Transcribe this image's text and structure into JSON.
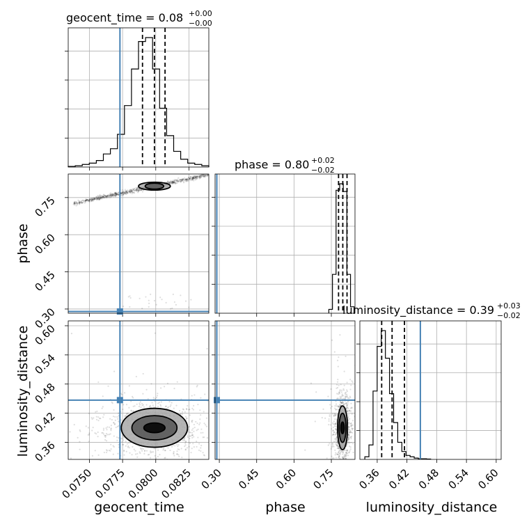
{
  "chart_data": {
    "type": "corner",
    "grid": true,
    "truth_color": "#4682b4",
    "params": [
      {
        "name": "geocent_time",
        "title_prefix": "geocent_time = 0.08",
        "err_plus": "+0.00",
        "err_minus": "−0.00",
        "range": [
          0.0734,
          0.084
        ],
        "ticks": [
          0.075,
          0.0775,
          0.08,
          0.0825
        ],
        "tick_labels": [
          "0.0750",
          "0.0775",
          "0.0800",
          "0.0825"
        ],
        "truth": 0.0773,
        "quantiles": [
          0.079,
          0.0799,
          0.0807
        ],
        "hist_start": 0.0734,
        "hist_width": 0.00053,
        "hist": [
          0.5,
          1,
          2,
          3,
          5,
          10,
          14,
          25,
          47,
          75,
          96,
          99,
          75,
          45,
          24,
          12,
          6,
          3,
          2,
          1
        ]
      },
      {
        "name": "phase",
        "title_prefix": "phase = 0.80",
        "err_plus": "+0.02",
        "err_minus": "−0.02",
        "range": [
          0.283,
          0.845
        ],
        "ticks": [
          0.3,
          0.45,
          0.6,
          0.75
        ],
        "tick_labels": [
          "0.30",
          "0.45",
          "0.60",
          "0.75"
        ],
        "truth": 0.29,
        "quantiles": [
          0.779,
          0.796,
          0.813
        ],
        "hist_start": 0.74,
        "hist_width": 0.0145,
        "hist": [
          3,
          30,
          95,
          100,
          94,
          30,
          5
        ]
      },
      {
        "name": "luminosity_distance",
        "title_prefix": "luminosity_distance = 0.39",
        "err_plus": "+0.03",
        "err_minus": "−0.02",
        "range": [
          0.325,
          0.61
        ],
        "ticks": [
          0.36,
          0.42,
          0.48,
          0.54,
          0.6
        ],
        "tick_labels": [
          "0.36",
          "0.42",
          "0.48",
          "0.54",
          "0.60"
        ],
        "truth": 0.447,
        "quantiles": [
          0.369,
          0.39,
          0.415
        ],
        "hist_start": 0.335,
        "hist_width": 0.0083,
        "hist": [
          2,
          11,
          52,
          86,
          98,
          77,
          50,
          28,
          13,
          6,
          3,
          2,
          1,
          0.5,
          0.5,
          0.3
        ]
      }
    ],
    "scatter_2d": [
      {
        "x": "geocent_time",
        "y": "phase",
        "contour_center": [
          0.0799,
          0.796
        ],
        "contour_radii": [
          [
            0.0007,
            0.012
          ],
          [
            0.0012,
            0.016
          ]
        ]
      },
      {
        "x": "geocent_time",
        "y": "luminosity_distance",
        "contour_center": [
          0.0799,
          0.39
        ],
        "contour_radii": [
          [
            0.0008,
            0.01
          ],
          [
            0.0017,
            0.025
          ],
          [
            0.0025,
            0.04
          ]
        ]
      },
      {
        "x": "phase",
        "y": "luminosity_distance",
        "contour_center": [
          0.795,
          0.39
        ],
        "contour_radii": [
          [
            0.007,
            0.012
          ],
          [
            0.014,
            0.03
          ],
          [
            0.02,
            0.045
          ]
        ]
      }
    ]
  }
}
